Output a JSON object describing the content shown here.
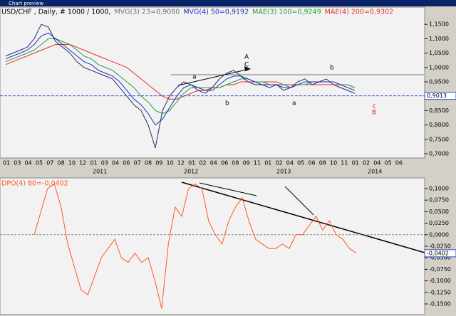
{
  "window_title": "Chart preview",
  "chart_data": [
    {
      "type": "line",
      "header": [
        {
          "text": "USD/CHF , Daily, # 1000 / 1000,",
          "color": "#000000"
        },
        {
          "text": "MVG(3) 23=0,9080",
          "color": "#707070"
        },
        {
          "text": "MVG(4) 50=0,9192",
          "color": "#2030c0"
        },
        {
          "text": "MAE(3) 100=0,9249",
          "color": "#20a040"
        },
        {
          "text": "MAE(4) 200=0,9302",
          "color": "#e03030"
        }
      ],
      "ylim": [
        0.69,
        1.2
      ],
      "yticks": [
        {
          "value": 1.15,
          "label": "1,1500"
        },
        {
          "value": 1.1,
          "label": "1,1000"
        },
        {
          "value": 1.05,
          "label": "1,0500"
        },
        {
          "value": 1.0,
          "label": "1,0000"
        },
        {
          "value": 0.95,
          "label": "0,9500"
        },
        {
          "value": 0.85,
          "label": "0,8500"
        },
        {
          "value": 0.8,
          "label": "0,8000"
        },
        {
          "value": 0.75,
          "label": "0,7500"
        },
        {
          "value": 0.7,
          "label": "0,7000"
        }
      ],
      "last_price": {
        "value": 0.9013,
        "label": "0,9013"
      },
      "x_labels": [
        "01",
        "03",
        "04",
        "05",
        "07",
        "08",
        "10",
        "12",
        "01",
        "03",
        "04",
        "06",
        "07",
        "08",
        "09",
        "10",
        "12",
        "01",
        "02",
        "04",
        "06",
        "08",
        "09",
        "11",
        "01",
        "02",
        "04",
        "05",
        "06",
        "08",
        "10",
        "11",
        "01",
        "02",
        "04",
        "05",
        "06"
      ],
      "years": [
        "2011",
        "2012",
        "2013",
        "2014"
      ],
      "annotations": [
        {
          "text": "A",
          "color": "#000000"
        },
        {
          "text": "C",
          "color": "#000000"
        },
        {
          "text": "a",
          "color": "#000000"
        },
        {
          "text": "b",
          "color": "#000000"
        },
        {
          "text": "a",
          "color": "#000000"
        },
        {
          "text": "b",
          "color": "#000000"
        },
        {
          "text": "c",
          "color": "#e02020"
        },
        {
          "text": "B",
          "color": "#e02020"
        }
      ],
      "series": [
        {
          "color": "#e03030",
          "values": [
            1.01,
            1.02,
            1.03,
            1.04,
            1.05,
            1.06,
            1.07,
            1.08,
            1.08,
            1.08,
            1.07,
            1.06,
            1.05,
            1.04,
            1.03,
            1.02,
            1.01,
            1.0,
            0.98,
            0.96,
            0.94,
            0.92,
            0.9,
            0.89,
            0.89,
            0.9,
            0.91,
            0.92,
            0.92,
            0.93,
            0.93,
            0.94,
            0.94,
            0.95,
            0.95,
            0.95,
            0.95,
            0.95,
            0.95,
            0.94,
            0.94,
            0.94,
            0.94,
            0.94,
            0.94,
            0.94,
            0.94,
            0.94,
            0.94,
            0.93
          ]
        },
        {
          "color": "#20a040",
          "values": [
            1.02,
            1.03,
            1.04,
            1.05,
            1.06,
            1.08,
            1.1,
            1.1,
            1.09,
            1.08,
            1.06,
            1.04,
            1.03,
            1.01,
            1.0,
            0.99,
            0.97,
            0.95,
            0.93,
            0.9,
            0.88,
            0.85,
            0.84,
            0.85,
            0.88,
            0.91,
            0.93,
            0.93,
            0.93,
            0.93,
            0.93,
            0.94,
            0.95,
            0.96,
            0.96,
            0.95,
            0.95,
            0.94,
            0.94,
            0.94,
            0.93,
            0.94,
            0.94,
            0.95,
            0.95,
            0.95,
            0.95,
            0.94,
            0.94,
            0.93
          ]
        },
        {
          "color": "#2030c0",
          "values": [
            1.03,
            1.04,
            1.05,
            1.06,
            1.08,
            1.11,
            1.12,
            1.1,
            1.08,
            1.06,
            1.04,
            1.02,
            1.01,
            0.99,
            0.98,
            0.97,
            0.95,
            0.92,
            0.89,
            0.87,
            0.84,
            0.8,
            0.82,
            0.86,
            0.9,
            0.93,
            0.94,
            0.93,
            0.92,
            0.92,
            0.94,
            0.96,
            0.97,
            0.97,
            0.96,
            0.95,
            0.94,
            0.94,
            0.94,
            0.93,
            0.93,
            0.94,
            0.95,
            0.95,
            0.95,
            0.95,
            0.95,
            0.94,
            0.93,
            0.92
          ]
        },
        {
          "color": "#302868",
          "values": [
            1.04,
            1.05,
            1.06,
            1.07,
            1.1,
            1.15,
            1.14,
            1.09,
            1.07,
            1.05,
            1.02,
            1.0,
            0.99,
            0.98,
            0.97,
            0.96,
            0.93,
            0.9,
            0.87,
            0.85,
            0.8,
            0.72,
            0.85,
            0.9,
            0.93,
            0.95,
            0.94,
            0.92,
            0.91,
            0.93,
            0.96,
            0.98,
            0.99,
            0.97,
            0.95,
            0.94,
            0.94,
            0.93,
            0.94,
            0.92,
            0.93,
            0.95,
            0.96,
            0.94,
            0.95,
            0.96,
            0.94,
            0.93,
            0.92,
            0.91
          ]
        }
      ]
    },
    {
      "type": "line",
      "title": "DPO(4) 80=-0,0402",
      "ylim": [
        -0.17,
        0.12
      ],
      "yticks": [
        {
          "value": 0.1,
          "label": "0,1000"
        },
        {
          "value": 0.075,
          "label": "0,0750"
        },
        {
          "value": 0.05,
          "label": "0,0500"
        },
        {
          "value": 0.025,
          "label": "0,0250"
        },
        {
          "value": 0,
          "label": "0,0000"
        },
        {
          "value": -0.025,
          "label": "-0,0250"
        },
        {
          "value": -0.05,
          "label": "-0,0500"
        },
        {
          "value": -0.075,
          "label": "-0,0750"
        },
        {
          "value": -0.1,
          "label": "-0,1000"
        },
        {
          "value": -0.125,
          "label": "-0,1250"
        },
        {
          "value": -0.15,
          "label": "-0,1500"
        }
      ],
      "last_value": {
        "value": -0.0402,
        "label": "-0,0402"
      },
      "series": [
        {
          "color": "#ff5a1e",
          "values": [
            0.0,
            0.05,
            0.1,
            0.11,
            0.06,
            -0.02,
            -0.07,
            -0.12,
            -0.13,
            -0.09,
            -0.05,
            -0.03,
            -0.01,
            -0.05,
            -0.06,
            -0.04,
            -0.06,
            -0.05,
            -0.1,
            -0.16,
            -0.02,
            0.06,
            0.04,
            0.1,
            0.11,
            0.1,
            0.03,
            0.0,
            -0.02,
            0.03,
            0.06,
            0.08,
            0.03,
            -0.01,
            -0.02,
            -0.03,
            -0.03,
            -0.02,
            -0.03,
            0.0,
            0.0,
            0.02,
            0.04,
            0.01,
            0.03,
            0.0,
            -0.01,
            -0.03,
            -0.04
          ]
        }
      ]
    }
  ]
}
